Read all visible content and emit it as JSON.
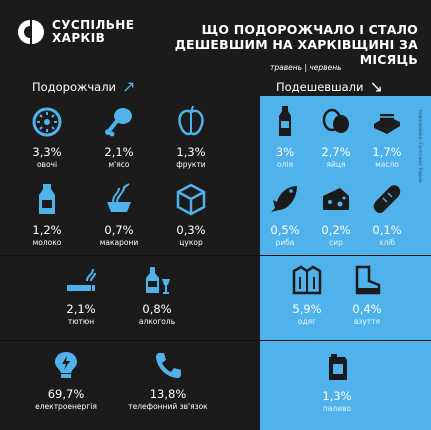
{
  "brand": {
    "line1": "СУСПІЛЬНЕ",
    "line2": "ХАРКІВ"
  },
  "title": {
    "line1": "ЩО ПОДОРОЖЧАЛО І СТАЛО",
    "line2": "ДЕШЕВШИМ НА ХАРКІВЩИНІ ЗА МІСЯЦЬ"
  },
  "period": "травень | червень",
  "sections": {
    "up": "Подорожчали",
    "down": "Подешевшали",
    "up_arrow": "↗",
    "down_arrow": "↘"
  },
  "side_note": "Інфографіка: Суспільне Харків",
  "up_items": [
    {
      "value": "3,3%",
      "label": "овочі",
      "icon": "vegetable-icon"
    },
    {
      "value": "2,1%",
      "label": "м'ясо",
      "icon": "meat-icon"
    },
    {
      "value": "1,3%",
      "label": "фрукти",
      "icon": "apple-icon"
    },
    {
      "value": "1,2%",
      "label": "молоко",
      "icon": "milk-bottle-icon"
    },
    {
      "value": "0,7%",
      "label": "макарони",
      "icon": "pasta-icon"
    },
    {
      "value": "0,3%",
      "label": "цукор",
      "icon": "sugar-cube-icon"
    },
    {
      "value": "2,1%",
      "label": "тютюн",
      "icon": "cigarette-icon"
    },
    {
      "value": "0,8%",
      "label": "алкоголь",
      "icon": "alcohol-icon"
    },
    {
      "value": "69,7%",
      "label": "електроенергія",
      "icon": "lightbulb-icon"
    },
    {
      "value": "13,8%",
      "label": "телефонний зв'язок",
      "icon": "phone-icon"
    }
  ],
  "down_items": [
    {
      "value": "3%",
      "label": "олія",
      "icon": "oil-bottle-icon"
    },
    {
      "value": "2,7%",
      "label": "яйця",
      "icon": "eggs-icon"
    },
    {
      "value": "1,7%",
      "label": "масло",
      "icon": "butter-icon"
    },
    {
      "value": "0,5%",
      "label": "риба",
      "icon": "fish-icon"
    },
    {
      "value": "0,2%",
      "label": "сир",
      "icon": "cheese-icon"
    },
    {
      "value": "0,1%",
      "label": "хліб",
      "icon": "bread-icon"
    },
    {
      "value": "5,9%",
      "label": "одяг",
      "icon": "jacket-icon"
    },
    {
      "value": "0,4%",
      "label": "взуття",
      "icon": "boot-icon"
    },
    {
      "value": "1,3%",
      "label": "паливо",
      "icon": "fuel-can-icon"
    }
  ],
  "colors": {
    "dark": "#1b1b1b",
    "blue": "#4fb2ea",
    "white": "#ffffff"
  }
}
